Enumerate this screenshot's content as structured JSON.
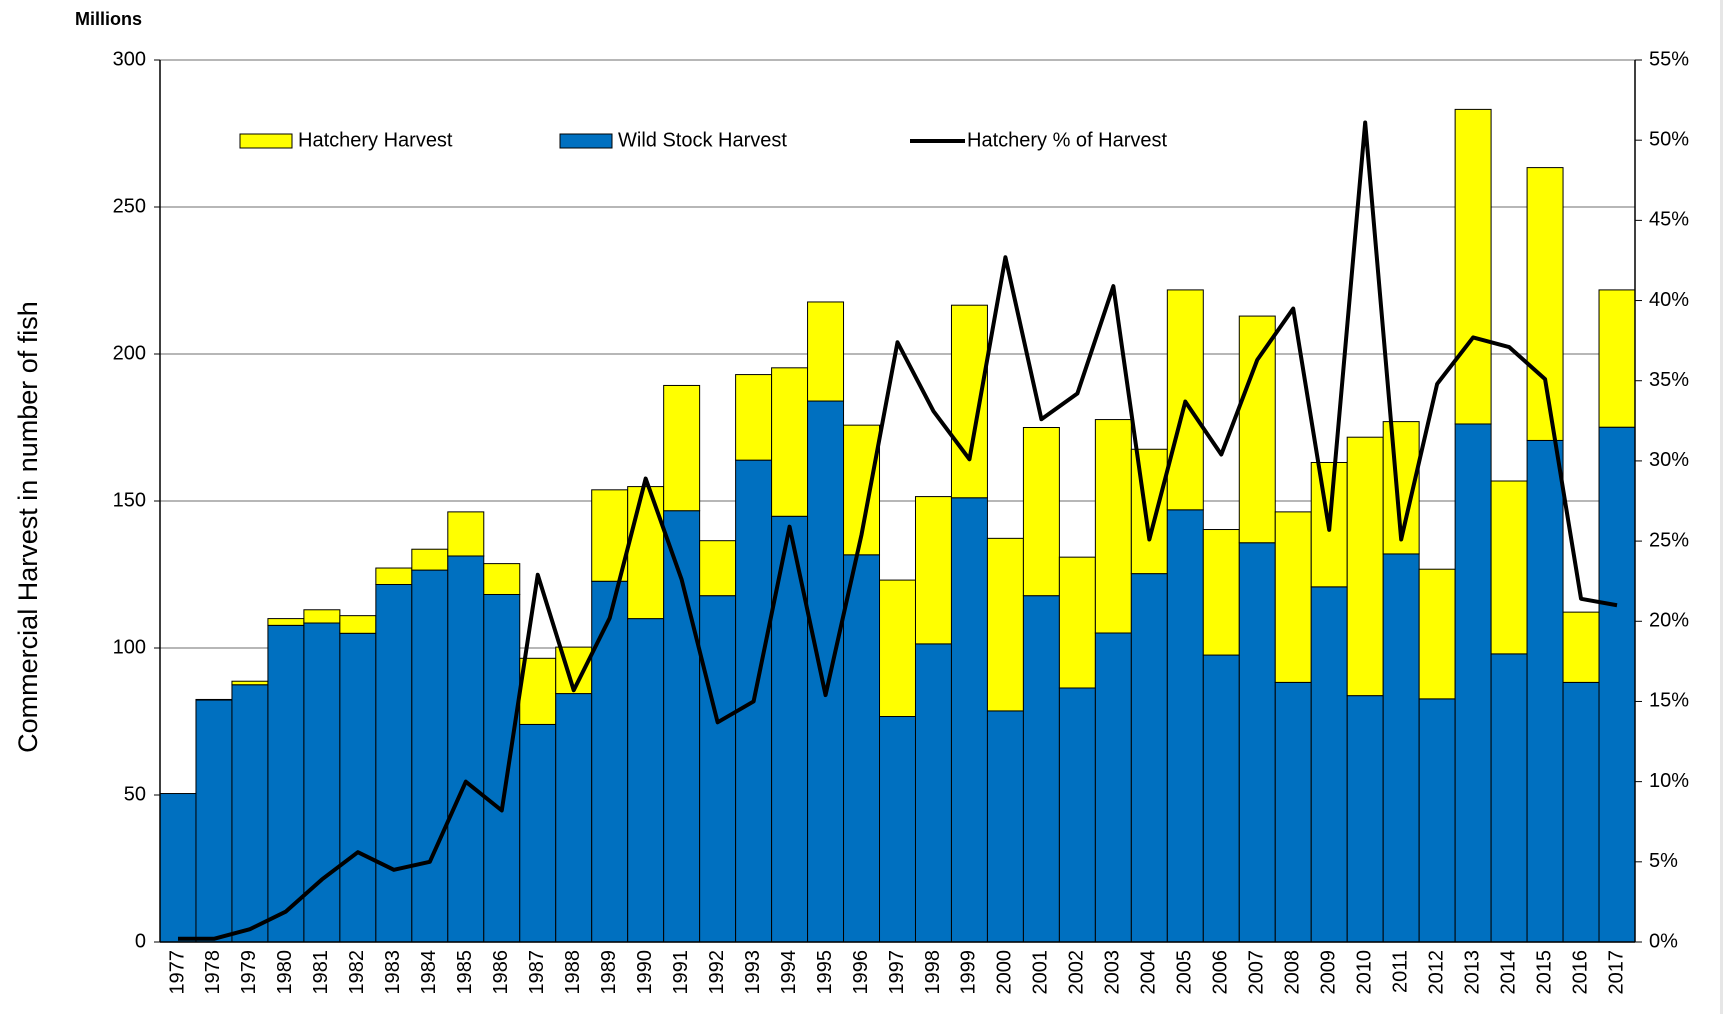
{
  "chart_data": {
    "type": "bar",
    "y_label": "Commercial Harvest in number of fish",
    "y_unit": "Millions",
    "categories": [
      "1977",
      "1978",
      "1979",
      "1980",
      "1981",
      "1982",
      "1983",
      "1984",
      "1985",
      "1986",
      "1987",
      "1988",
      "1989",
      "1990",
      "1991",
      "1992",
      "1993",
      "1994",
      "1995",
      "1996",
      "1997",
      "1998",
      "1999",
      "2000",
      "2001",
      "2002",
      "2003",
      "2004",
      "2005",
      "2006",
      "2007",
      "2008",
      "2009",
      "2010",
      "2011",
      "2012",
      "2013",
      "2014",
      "2015",
      "2016",
      "2017"
    ],
    "stacked": true,
    "series": [
      {
        "name": "Hatchery Harvest",
        "color": "#ffff00",
        "values": [
          0,
          0.2,
          1.2,
          2.3,
          4.5,
          6,
          5.6,
          7.1,
          15,
          10.5,
          22.5,
          15.8,
          31.1,
          44.9,
          42.6,
          18.7,
          29.1,
          50.5,
          33.7,
          44.1,
          46.4,
          50.1,
          65.5,
          58.7,
          57.2,
          44.5,
          72.6,
          42.3,
          74.8,
          42.7,
          77.1,
          58,
          42.3,
          87.9,
          45,
          44.1,
          107,
          58.8,
          92.8,
          23.9,
          46.7
        ]
      },
      {
        "name": "Wild Stock Harvest",
        "color": "#0070c0",
        "values": [
          50.5,
          82.3,
          87.5,
          107.7,
          108.5,
          105,
          121.6,
          126.5,
          131.3,
          118.2,
          74,
          84.5,
          122.7,
          110,
          146.7,
          117.8,
          163.9,
          144.8,
          184,
          131.7,
          76.7,
          101.4,
          151.1,
          78.6,
          117.8,
          86.4,
          105.1,
          125.3,
          147,
          97.6,
          135.8,
          88.3,
          120.8,
          83.8,
          132,
          82.7,
          176.2,
          98,
          170.6,
          88.3,
          175.1
        ]
      },
      {
        "name": "Hatchery % of Harvest",
        "type": "line",
        "axis": "y2",
        "color": "#000000",
        "values": [
          0.2,
          0.2,
          0.8,
          1.9,
          3.9,
          5.6,
          4.5,
          5.0,
          10.0,
          8.2,
          22.9,
          15.7,
          20.2,
          28.9,
          22.6,
          13.7,
          15.0,
          25.9,
          15.4,
          25.4,
          37.4,
          33.1,
          30.1,
          42.7,
          32.6,
          34.2,
          40.9,
          25.1,
          33.7,
          30.4,
          36.3,
          39.5,
          25.7,
          51.1,
          25.1,
          34.8,
          37.7,
          37.1,
          35.1,
          21.4,
          21.0
        ]
      }
    ],
    "ylim": [
      0,
      300
    ],
    "yticks": [
      0,
      50,
      100,
      150,
      200,
      250,
      300
    ],
    "y2lim": [
      0,
      55
    ],
    "y2ticks": [
      {
        "value": 0,
        "label": "0%"
      },
      {
        "value": 5,
        "label": "5%"
      },
      {
        "value": 10,
        "label": "10%"
      },
      {
        "value": 15,
        "label": "15%"
      },
      {
        "value": 20,
        "label": "20%"
      },
      {
        "value": 25,
        "label": "25%"
      },
      {
        "value": 30,
        "label": "30%"
      },
      {
        "value": 35,
        "label": "35%"
      },
      {
        "value": 40,
        "label": "40%"
      },
      {
        "value": 45,
        "label": "45%"
      },
      {
        "value": 50,
        "label": "50%"
      },
      {
        "value": 55,
        "label": "55%"
      }
    ],
    "grid": true,
    "legend": "top"
  }
}
